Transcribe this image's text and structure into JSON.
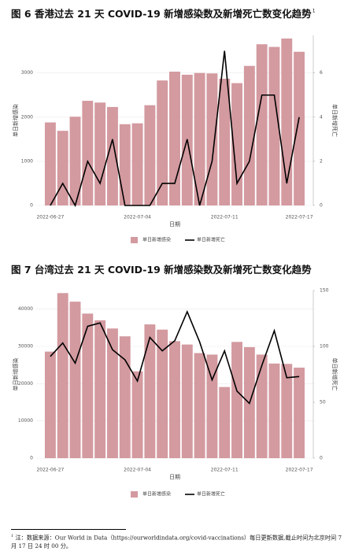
{
  "chart_data": [
    {
      "type": "bar_line",
      "title": "图 6 香港过去 21 天 COVID-19 新增感染数及新增死亡数变化趋势",
      "title_superscript": "1",
      "x_label": "日期",
      "y_label": "单日新增感染",
      "y2_label": "单日新增死亡",
      "categories": [
        "2022-06-27",
        null,
        null,
        null,
        null,
        null,
        null,
        "2022-07-04",
        null,
        null,
        null,
        null,
        null,
        null,
        "2022-07-11",
        null,
        null,
        null,
        null,
        null,
        "2022-07-17"
      ],
      "series": [
        {
          "name": "单日新增感染",
          "kind": "bar",
          "color": "#d39aa0",
          "values": [
            1880,
            1690,
            2010,
            2370,
            2330,
            2230,
            1840,
            1860,
            2270,
            2830,
            3030,
            2960,
            3000,
            2990,
            2870,
            2770,
            3160,
            3650,
            3590,
            3780,
            3480
          ]
        },
        {
          "name": "单日新增死亡",
          "kind": "line",
          "axis": "y2",
          "color": "#000000",
          "values": [
            0,
            1,
            0,
            2,
            1,
            3,
            0,
            0,
            0,
            1,
            1,
            3,
            0,
            2,
            7,
            1,
            2,
            5,
            5,
            1,
            4
          ]
        }
      ],
      "ylim": [
        0,
        3850
      ],
      "yticks": [
        0,
        1000,
        2000,
        3000
      ],
      "y2lim": [
        0,
        7.7
      ],
      "y2ticks": [
        0,
        2,
        4,
        6
      ],
      "grid": true,
      "legend": "bottom"
    },
    {
      "type": "bar_line",
      "title": "图 7 台湾过去 21 天 COVID-19 新增感染数及新增死亡数变化趋势",
      "x_label": "日期",
      "y_label": "单日新增感染",
      "y2_label": "单日新增死亡",
      "categories": [
        "2022-06-27",
        null,
        null,
        null,
        null,
        null,
        null,
        "2022-07-04",
        null,
        null,
        null,
        null,
        null,
        null,
        "2022-07-11",
        null,
        null,
        null,
        null,
        null,
        "2022-07-17"
      ],
      "series": [
        {
          "name": "单日新增感染",
          "kind": "bar",
          "color": "#d39aa0",
          "values": [
            28600,
            44300,
            42000,
            38800,
            37000,
            34800,
            32700,
            23300,
            35900,
            34500,
            31400,
            30500,
            28200,
            27800,
            19100,
            31200,
            29800,
            27800,
            25400,
            25300,
            24300
          ]
        },
        {
          "name": "单日新增死亡",
          "kind": "line",
          "axis": "y2",
          "color": "#000000",
          "values": [
            91,
            103,
            85,
            118,
            121,
            97,
            88,
            69,
            108,
            96,
            105,
            131,
            104,
            70,
            96,
            60,
            49,
            83,
            114,
            72,
            73
          ]
        }
      ],
      "ylim": [
        0,
        45000
      ],
      "yticks": [
        0,
        10000,
        20000,
        30000,
        40000
      ],
      "y2lim": [
        0,
        150
      ],
      "y2ticks": [
        0,
        50,
        100,
        150
      ],
      "grid": true,
      "legend": "bottom"
    }
  ],
  "footnote": {
    "marker": "1",
    "text": "注：数据来源：Our World in Data（https://ourworldindata.org/covid-vaccinations）每日更新数据,截止时间为北京时间 7 月 17 日 24 时 00 分。"
  }
}
